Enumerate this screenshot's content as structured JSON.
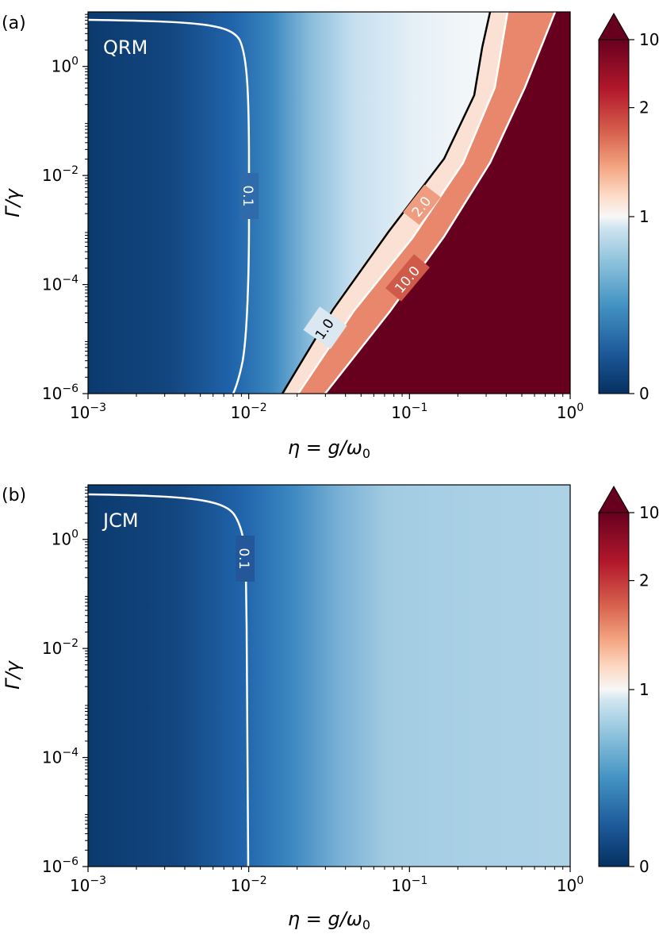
{
  "chart_data": [
    {
      "type": "heatmap",
      "panel_label": "(a)",
      "model_label": "QRM",
      "xlabel": "η = g/ω₀",
      "ylabel": "Γ/γ",
      "x_scale": "log",
      "y_scale": "log",
      "xlim": [
        0.001,
        1
      ],
      "ylim": [
        1e-06,
        10
      ],
      "x_ticks": [
        {
          "value": 0.001,
          "base": "10",
          "exp": "−3"
        },
        {
          "value": 0.01,
          "base": "10",
          "exp": "−2"
        },
        {
          "value": 0.1,
          "base": "10",
          "exp": "−1"
        },
        {
          "value": 1,
          "base": "10",
          "exp": "0"
        }
      ],
      "y_ticks": [
        {
          "value": 1e-06,
          "base": "10",
          "exp": "−6"
        },
        {
          "value": 0.0001,
          "base": "10",
          "exp": "−4"
        },
        {
          "value": 0.01,
          "base": "10",
          "exp": "−2"
        },
        {
          "value": 1,
          "base": "10",
          "exp": "0"
        }
      ],
      "colorbar": {
        "colormap": "RdBu_r",
        "extend": "max",
        "ticks": [
          {
            "value": 0,
            "label": "0"
          },
          {
            "value": 1,
            "label": "1"
          },
          {
            "value": 2,
            "label": "2"
          },
          {
            "value": 10,
            "label": "10"
          }
        ]
      },
      "contours": [
        {
          "level": 0.1,
          "label": "0.1",
          "color": "#ffffff",
          "points": [
            [
              0.00098,
              6.5
            ],
            [
              0.0068,
              5.2
            ],
            [
              0.0094,
              1.5
            ],
            [
              0.0099,
              0.1
            ],
            [
              0.0099,
              0.0001
            ],
            [
              0.0092,
              1e-05
            ],
            [
              0.0075,
              1e-06
            ]
          ]
        },
        {
          "level": 1.0,
          "label": "1.0",
          "color": "#000000",
          "points": [
            [
              0.0162,
              1e-06
            ],
            [
              0.024,
              1e-05
            ],
            [
              0.05,
              0.0001
            ],
            [
              0.1,
              0.0008
            ],
            [
              0.2,
              0.02
            ],
            [
              0.27,
              0.5
            ],
            [
              0.3,
              10
            ]
          ]
        },
        {
          "level": 2.0,
          "label": "2.0",
          "color": "#ffffff",
          "points": [
            [
              0.0185,
              1e-06
            ],
            [
              0.028,
              1e-05
            ],
            [
              0.06,
              0.0001
            ],
            [
              0.12,
              0.001
            ],
            [
              0.25,
              0.03
            ],
            [
              0.32,
              0.5
            ],
            [
              0.37,
              10
            ]
          ]
        },
        {
          "level": 10.0,
          "label": "10.0",
          "color": "#ffffff",
          "points": [
            [
              0.029,
              1e-06
            ],
            [
              0.045,
              1e-05
            ],
            [
              0.085,
              0.0001
            ],
            [
              0.17,
              0.001
            ],
            [
              0.35,
              0.05
            ],
            [
              0.45,
              0.5
            ],
            [
              0.55,
              10
            ]
          ]
        }
      ]
    },
    {
      "type": "heatmap",
      "panel_label": "(b)",
      "model_label": "JCM",
      "xlabel": "η = g/ω₀",
      "ylabel": "Γ/γ",
      "x_scale": "log",
      "y_scale": "log",
      "xlim": [
        0.001,
        1
      ],
      "ylim": [
        1e-06,
        10
      ],
      "x_ticks": [
        {
          "value": 0.001,
          "base": "10",
          "exp": "−3"
        },
        {
          "value": 0.01,
          "base": "10",
          "exp": "−2"
        },
        {
          "value": 0.1,
          "base": "10",
          "exp": "−1"
        },
        {
          "value": 1,
          "base": "10",
          "exp": "0"
        }
      ],
      "y_ticks": [
        {
          "value": 1e-06,
          "base": "10",
          "exp": "−6"
        },
        {
          "value": 0.0001,
          "base": "10",
          "exp": "−4"
        },
        {
          "value": 0.01,
          "base": "10",
          "exp": "−2"
        },
        {
          "value": 1,
          "base": "10",
          "exp": "0"
        }
      ],
      "colorbar": {
        "colormap": "RdBu_r",
        "extend": "max",
        "ticks": [
          {
            "value": 0,
            "label": "0"
          },
          {
            "value": 1,
            "label": "1"
          },
          {
            "value": 2,
            "label": "2"
          },
          {
            "value": 10,
            "label": "10"
          }
        ]
      },
      "contours": [
        {
          "level": 0.1,
          "label": "0.1",
          "color": "#ffffff",
          "points": [
            [
              0.00098,
              6.0
            ],
            [
              0.0062,
              5.0
            ],
            [
              0.0088,
              1.5
            ],
            [
              0.0099,
              0.1
            ],
            [
              0.01,
              0.0001
            ],
            [
              0.01,
              1e-06
            ]
          ]
        }
      ]
    }
  ]
}
